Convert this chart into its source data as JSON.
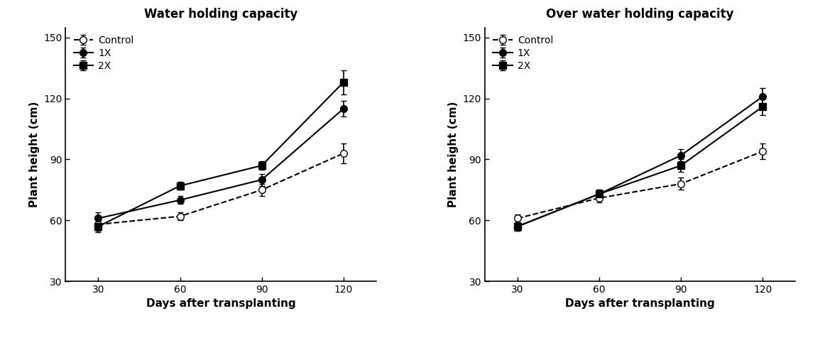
{
  "days": [
    30,
    60,
    90,
    120
  ],
  "panel1": {
    "title": "Water holding capacity",
    "control": {
      "y": [
        58,
        62,
        75,
        93
      ],
      "yerr": [
        3,
        2,
        3,
        5
      ]
    },
    "x1": {
      "y": [
        61,
        70,
        80,
        115
      ],
      "yerr": [
        3,
        2,
        3,
        4
      ]
    },
    "x2": {
      "y": [
        57,
        77,
        87,
        128
      ],
      "yerr": [
        3,
        2,
        2,
        6
      ]
    }
  },
  "panel2": {
    "title": "Over water holding capacity",
    "control": {
      "y": [
        61,
        71,
        78,
        94
      ],
      "yerr": [
        2,
        2,
        3,
        4
      ]
    },
    "x1": {
      "y": [
        57,
        73,
        92,
        121
      ],
      "yerr": [
        2,
        2,
        3,
        4
      ]
    },
    "x2": {
      "y": [
        57,
        73,
        87,
        116
      ],
      "yerr": [
        2,
        2,
        3,
        4
      ]
    }
  },
  "ylabel": "Plant height (cm)",
  "xlabel": "Days after transplanting",
  "ylim": [
    30,
    155
  ],
  "yticks": [
    30,
    60,
    90,
    120,
    150
  ],
  "legend_labels": [
    "Control",
    "1X",
    "2X"
  ],
  "title_fontsize": 12,
  "label_fontsize": 11,
  "tick_fontsize": 10,
  "legend_fontsize": 10,
  "marker_size": 7,
  "linewidth": 1.5,
  "capsize": 3,
  "elinewidth": 1.2
}
